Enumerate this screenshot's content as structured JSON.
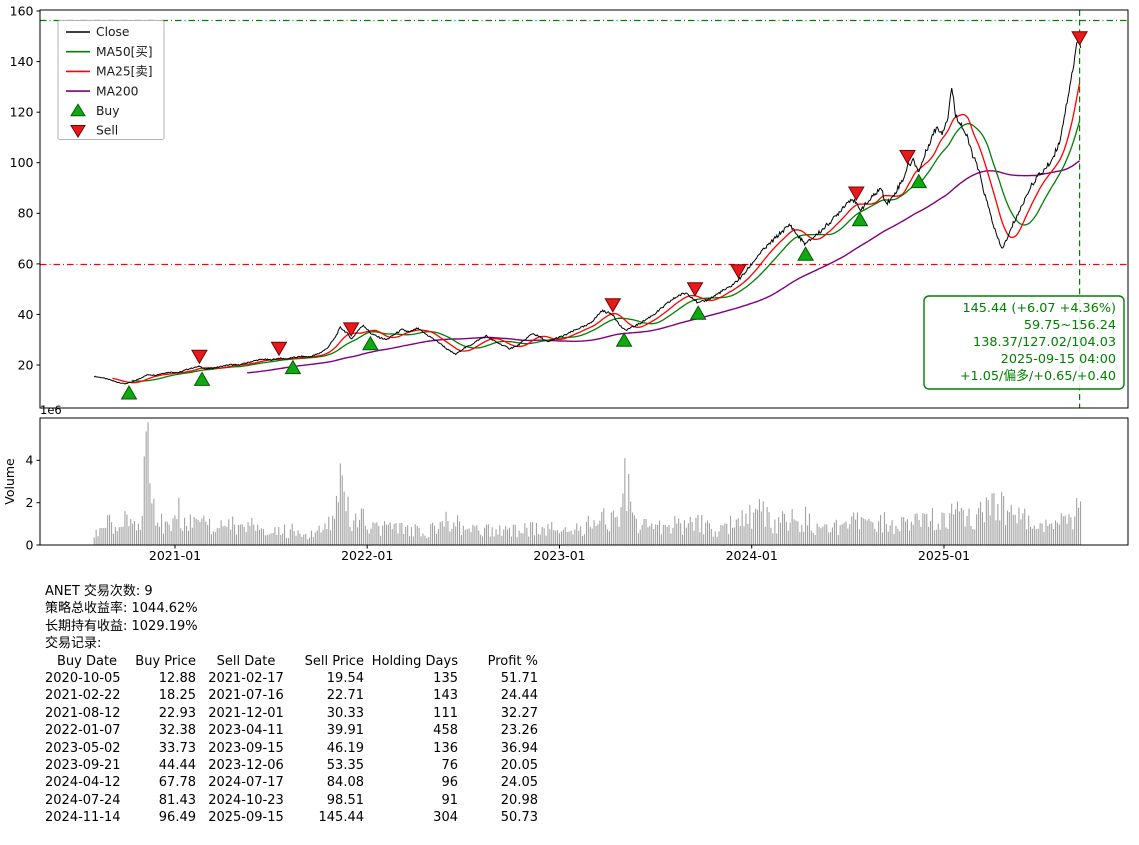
{
  "chart_data": {
    "type": "line",
    "symbol": "ANET",
    "xlim": [
      2020.298,
      2025.957
    ],
    "ylim": [
      3,
      160.4
    ],
    "grid": false,
    "legend_position": "upper-left",
    "y_ticks": [
      20,
      40,
      60,
      80,
      100,
      120,
      140,
      160
    ],
    "x_ticks": [
      {
        "t": 2021.0,
        "label": "2021-01"
      },
      {
        "t": 2022.0,
        "label": "2022-01"
      },
      {
        "t": 2023.0,
        "label": "2023-01"
      },
      {
        "t": 2024.0,
        "label": "2024-01"
      },
      {
        "t": 2025.0,
        "label": "2025-01"
      }
    ],
    "volume_axis": {
      "ticks": [
        0,
        2,
        4
      ],
      "multiplier_label": "1e6",
      "ylabel": "Volume",
      "ylim_millions": [
        0,
        6
      ]
    },
    "colors": {
      "close": "#000000",
      "ma50": "#008000",
      "ma25": "#ff0000",
      "ma200": "#800080",
      "volume": "#8c8c8c"
    },
    "markers": {
      "buy": {
        "fill": "#0faa0f",
        "stroke": "#055a05"
      },
      "sell": {
        "fill": "#e8191c",
        "stroke": "#7a0000"
      }
    },
    "legend": [
      {
        "label": "Close",
        "color": "#000000",
        "kind": "line"
      },
      {
        "label": "MA50[买]",
        "color": "#008000",
        "kind": "line"
      },
      {
        "label": "MA25[卖]",
        "color": "#ff0000",
        "kind": "line"
      },
      {
        "label": "MA200",
        "color": "#800080",
        "kind": "line"
      },
      {
        "label": "Buy",
        "color": "#0faa0f",
        "edge": "#055a05",
        "kind": "triangle-up"
      },
      {
        "label": "Sell",
        "color": "#e8191c",
        "edge": "#7a0000",
        "kind": "triangle-down"
      }
    ],
    "hlines": [
      {
        "value": 156.24,
        "color": "#008000",
        "style": "dashdot"
      },
      {
        "value": 59.75,
        "color": "#ff0000",
        "style": "dashdot"
      }
    ],
    "vline": {
      "date": "2025-09-15",
      "color": "#008000",
      "style": "dashed"
    },
    "annotation": {
      "color": "#008000",
      "lines": [
        "145.44 (+6.07 +4.36%)",
        "59.75~156.24",
        "138.37/127.02/104.03",
        "2025-09-15 04:00",
        "+1.05/偏多/+0.65/+0.40"
      ]
    },
    "series": {
      "t": [
        2020.58,
        2020.62,
        2020.66,
        2020.7,
        2020.74,
        2020.78,
        2020.82,
        2020.86,
        2020.9,
        2020.94,
        2020.98,
        2021.02,
        2021.06,
        2021.1,
        2021.13,
        2021.16,
        2021.2,
        2021.25,
        2021.29,
        2021.33,
        2021.38,
        2021.42,
        2021.46,
        2021.5,
        2021.54,
        2021.58,
        2021.61,
        2021.66,
        2021.7,
        2021.75,
        2021.79,
        2021.83,
        2021.86,
        2021.89,
        2021.92,
        2021.95,
        2021.98,
        2022.02,
        2022.06,
        2022.1,
        2022.14,
        2022.18,
        2022.22,
        2022.26,
        2022.3,
        2022.34,
        2022.38,
        2022.42,
        2022.46,
        2022.5,
        2022.54,
        2022.58,
        2022.62,
        2022.66,
        2022.7,
        2022.74,
        2022.78,
        2022.82,
        2022.86,
        2022.9,
        2022.94,
        2022.98,
        2023.02,
        2023.06,
        2023.1,
        2023.14,
        2023.18,
        2023.22,
        2023.26,
        2023.28,
        2023.31,
        2023.34,
        2023.38,
        2023.42,
        2023.46,
        2023.5,
        2023.54,
        2023.58,
        2023.62,
        2023.66,
        2023.7,
        2023.72,
        2023.76,
        2023.8,
        2023.84,
        2023.88,
        2023.92,
        2023.96,
        2024.0,
        2024.04,
        2024.08,
        2024.12,
        2024.16,
        2024.2,
        2024.24,
        2024.28,
        2024.32,
        2024.36,
        2024.4,
        2024.44,
        2024.48,
        2024.52,
        2024.54,
        2024.56,
        2024.6,
        2024.64,
        2024.67,
        2024.7,
        2024.73,
        2024.76,
        2024.79,
        2024.81,
        2024.84,
        2024.87,
        2024.9,
        2024.93,
        2024.96,
        2024.99,
        2025.02,
        2025.04,
        2025.06,
        2025.09,
        2025.12,
        2025.15,
        2025.18,
        2025.21,
        2025.24,
        2025.27,
        2025.3,
        2025.33,
        2025.36,
        2025.4,
        2025.44,
        2025.48,
        2025.52,
        2025.56,
        2025.6,
        2025.63,
        2025.66,
        2025.68,
        2025.7,
        2025.71
      ],
      "close": [
        15.5,
        15.0,
        14.2,
        13.2,
        12.6,
        13.3,
        14.8,
        16.2,
        16.0,
        16.8,
        17.2,
        17.0,
        18.2,
        19.0,
        19.5,
        18.3,
        18.8,
        19.6,
        20.2,
        20.0,
        21.0,
        21.8,
        22.3,
        22.0,
        22.7,
        22.4,
        22.9,
        23.4,
        23.2,
        24.6,
        26.5,
        30.5,
        34.8,
        33.0,
        30.3,
        33.5,
        35.8,
        32.4,
        31.0,
        30.0,
        32.0,
        34.0,
        33.0,
        34.5,
        32.5,
        30.5,
        28.5,
        26.0,
        24.2,
        26.5,
        28.0,
        30.0,
        31.5,
        29.5,
        28.0,
        26.5,
        27.5,
        30.0,
        32.5,
        31.0,
        29.0,
        30.5,
        31.5,
        33.0,
        34.5,
        35.5,
        38.0,
        41.5,
        40.5,
        39.9,
        36.0,
        33.7,
        35.0,
        36.5,
        38.5,
        40.5,
        43.0,
        45.5,
        47.5,
        48.5,
        46.2,
        44.4,
        45.5,
        47.0,
        49.0,
        50.5,
        53.0,
        56.0,
        60.0,
        64.0,
        67.0,
        70.0,
        73.0,
        75.5,
        71.0,
        67.8,
        70.5,
        73.0,
        76.0,
        79.0,
        83.0,
        86.0,
        84.1,
        81.4,
        84.0,
        87.5,
        90.0,
        84.0,
        86.0,
        90.0,
        94.0,
        98.5,
        101.0,
        96.5,
        103.0,
        109.0,
        114.0,
        112.0,
        118.0,
        130.0,
        119.0,
        115.0,
        110.0,
        103.0,
        97.0,
        88.0,
        80.0,
        72.0,
        66.0,
        70.0,
        76.0,
        82.0,
        89.0,
        94.0,
        97.0,
        101.0,
        108.0,
        120.0,
        133.0,
        141.0,
        152.0,
        145.44
      ],
      "volume_millions": [
        0.6,
        0.8,
        1.0,
        0.7,
        1.1,
        0.9,
        1.3,
        5.6,
        1.4,
        0.9,
        1.0,
        1.5,
        1.1,
        1.3,
        1.6,
        1.2,
        0.9,
        0.8,
        1.0,
        0.7,
        0.8,
        0.9,
        0.6,
        0.7,
        0.8,
        0.6,
        0.7,
        0.6,
        0.5,
        0.7,
        0.9,
        1.6,
        3.5,
        1.8,
        1.3,
        1.1,
        1.2,
        1.0,
        0.8,
        0.9,
        0.7,
        0.8,
        0.6,
        0.7,
        0.6,
        0.8,
        0.9,
        1.1,
        1.0,
        0.8,
        0.7,
        0.6,
        0.7,
        0.6,
        0.7,
        0.8,
        0.6,
        0.7,
        0.8,
        0.6,
        0.7,
        0.8,
        0.9,
        0.7,
        0.8,
        0.9,
        1.0,
        1.3,
        1.1,
        1.2,
        1.4,
        3.7,
        1.4,
        0.9,
        0.8,
        0.9,
        0.8,
        1.0,
        0.9,
        0.8,
        1.0,
        1.1,
        0.8,
        0.7,
        0.8,
        0.9,
        1.1,
        1.2,
        1.4,
        1.6,
        1.2,
        1.0,
        1.1,
        1.2,
        1.0,
        1.3,
        0.9,
        0.8,
        0.9,
        0.8,
        1.0,
        1.1,
        1.0,
        1.2,
        0.9,
        0.8,
        1.0,
        1.1,
        0.9,
        0.8,
        1.0,
        1.2,
        1.1,
        1.3,
        1.2,
        1.4,
        1.3,
        1.2,
        1.5,
        1.8,
        1.6,
        1.3,
        1.2,
        1.4,
        1.3,
        1.5,
        1.6,
        1.7,
        1.8,
        1.5,
        1.3,
        1.2,
        1.1,
        1.0,
        0.9,
        1.0,
        1.1,
        1.3,
        1.5,
        1.4,
        1.6,
        1.7
      ]
    }
  },
  "stats": {
    "trade_count": "ANET 交易次数: 9",
    "strategy_return": "策略总收益率: 1044.62%",
    "buy_hold_return": "长期持有收益: 1029.19%",
    "trades_title": "交易记录:"
  },
  "table": {
    "headers": [
      "Buy Date",
      "Buy Price",
      "Sell Date",
      "Sell Price",
      "Holding Days",
      "Profit %"
    ]
  },
  "trades": [
    {
      "buy_date": "2020-10-05",
      "buy_price": "12.88",
      "sell_date": "2021-02-17",
      "sell_price": "19.54",
      "holding_days": "135",
      "profit_pct": "51.71"
    },
    {
      "buy_date": "2021-02-22",
      "buy_price": "18.25",
      "sell_date": "2021-07-16",
      "sell_price": "22.71",
      "holding_days": "143",
      "profit_pct": "24.44"
    },
    {
      "buy_date": "2021-08-12",
      "buy_price": "22.93",
      "sell_date": "2021-12-01",
      "sell_price": "30.33",
      "holding_days": "111",
      "profit_pct": "32.27"
    },
    {
      "buy_date": "2022-01-07",
      "buy_price": "32.38",
      "sell_date": "2023-04-11",
      "sell_price": "39.91",
      "holding_days": "458",
      "profit_pct": "23.26"
    },
    {
      "buy_date": "2023-05-02",
      "buy_price": "33.73",
      "sell_date": "2023-09-15",
      "sell_price": "46.19",
      "holding_days": "136",
      "profit_pct": "36.94"
    },
    {
      "buy_date": "2023-09-21",
      "buy_price": "44.44",
      "sell_date": "2023-12-06",
      "sell_price": "53.35",
      "holding_days": "76",
      "profit_pct": "20.05"
    },
    {
      "buy_date": "2024-04-12",
      "buy_price": "67.78",
      "sell_date": "2024-07-17",
      "sell_price": "84.08",
      "holding_days": "96",
      "profit_pct": "24.05"
    },
    {
      "buy_date": "2024-07-24",
      "buy_price": "81.43",
      "sell_date": "2024-10-23",
      "sell_price": "98.51",
      "holding_days": "91",
      "profit_pct": "20.98"
    },
    {
      "buy_date": "2024-11-14",
      "buy_price": "96.49",
      "sell_date": "2025-09-15",
      "sell_price": "145.44",
      "holding_days": "304",
      "profit_pct": "50.73"
    }
  ]
}
